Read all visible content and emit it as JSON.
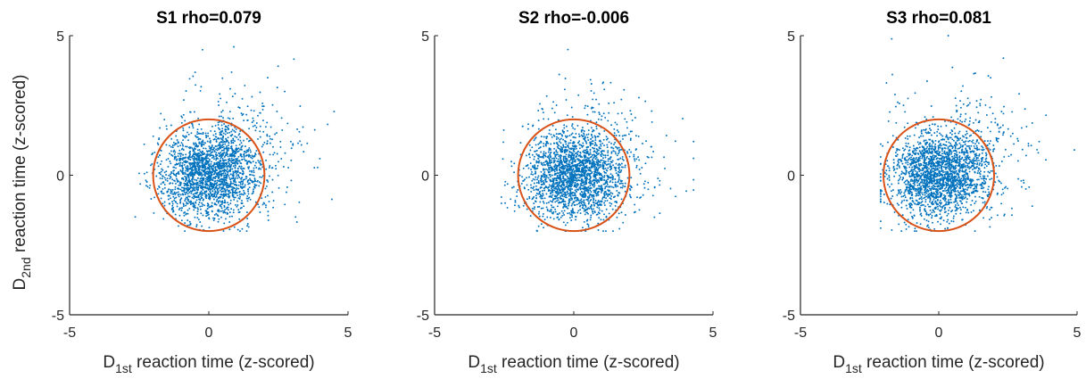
{
  "colors": {
    "points": "#0072BD",
    "circle": "#D95319",
    "axis": "#262626"
  },
  "shared_labels": {
    "ylabel_prefix": "D",
    "ylabel_sub": "2nd",
    "ylabel_suffix": " reaction time (z-scored)",
    "xlabel_prefix": "D",
    "xlabel_sub": "1st",
    "xlabel_suffix": " reaction time (z-scored)"
  },
  "chart_data": [
    {
      "type": "scatter",
      "title": "S1 rho=0.079",
      "xlim": [
        -5,
        5
      ],
      "ylim": [
        -5,
        5
      ],
      "xticks": [
        "-5",
        "0",
        "5"
      ],
      "yticks": [
        "5",
        "0",
        "-5"
      ],
      "grid": false,
      "circle": {
        "cx": 0,
        "cy": 0,
        "r": 2
      },
      "cloud": {
        "n": 2300,
        "spread_x": 0.85,
        "spread_y": 0.75,
        "rho": 0.079,
        "x_range": [
          -2.7,
          4.5
        ],
        "y_range": [
          -2.0,
          4.6
        ]
      }
    },
    {
      "type": "scatter",
      "title": "S2 rho=-0.006",
      "xlim": [
        -5,
        5
      ],
      "ylim": [
        -5,
        5
      ],
      "xticks": [
        "-5",
        "0",
        "5"
      ],
      "yticks": [
        "5",
        "0",
        "-5"
      ],
      "grid": false,
      "circle": {
        "cx": 0,
        "cy": 0,
        "r": 2
      },
      "cloud": {
        "n": 2300,
        "spread_x": 0.85,
        "spread_y": 0.75,
        "rho": -0.006,
        "x_range": [
          -2.6,
          4.3
        ],
        "y_range": [
          -2.0,
          4.5
        ]
      }
    },
    {
      "type": "scatter",
      "title": "S3 rho=0.081",
      "xlim": [
        -5,
        5
      ],
      "ylim": [
        -5,
        5
      ],
      "xticks": [
        "-5",
        "0",
        "5"
      ],
      "yticks": [
        "5",
        "0",
        "-5"
      ],
      "grid": false,
      "circle": {
        "cx": 0,
        "cy": 0,
        "r": 2
      },
      "cloud": {
        "n": 2300,
        "spread_x": 0.85,
        "spread_y": 0.75,
        "rho": 0.081,
        "x_range": [
          -2.1,
          4.9
        ],
        "y_range": [
          -2.0,
          5.0
        ]
      }
    }
  ]
}
